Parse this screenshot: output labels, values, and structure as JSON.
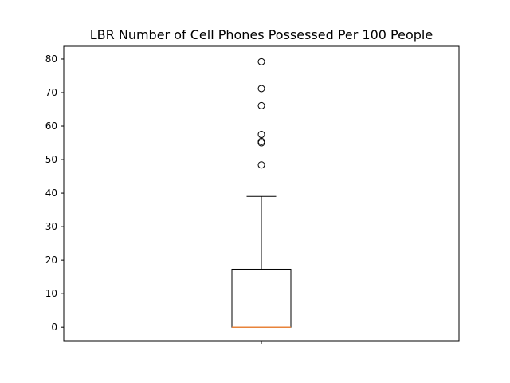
{
  "chart_data": {
    "type": "box",
    "title": "LBR Number of Cell Phones Possessed Per 100 People",
    "xlabel": "",
    "ylabel": "",
    "ylim": [
      -4,
      83.8
    ],
    "yticks": [
      "0",
      "10",
      "20",
      "30",
      "40",
      "50",
      "60",
      "70",
      "80"
    ],
    "ytick_values": [
      0,
      10,
      20,
      30,
      40,
      50,
      60,
      70,
      80
    ],
    "grid": false,
    "box": {
      "min": 0,
      "q1": 0,
      "median": 0,
      "q3": 17.3,
      "whisker_low": 0,
      "whisker_high": 39,
      "outliers": [
        79.2,
        71.2,
        66.1,
        57.5,
        55.4,
        55.0,
        48.4
      ]
    },
    "colors": {
      "box": "#000000",
      "median": "#e8833a",
      "outlier": "#000000"
    }
  }
}
